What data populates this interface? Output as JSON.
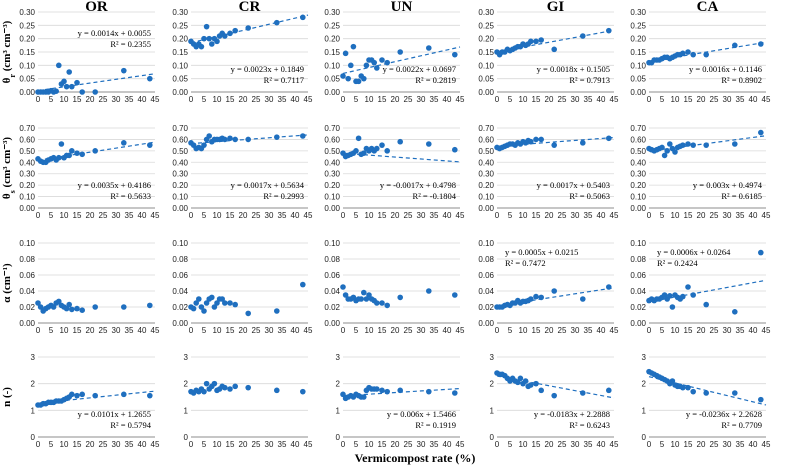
{
  "chart_data": {
    "type": "scatter",
    "x_axis_label": "Vermicompost rate (%)",
    "x_ticks": [
      "0",
      "5",
      "10",
      "15",
      "20",
      "25",
      "30",
      "35",
      "40",
      "45"
    ],
    "xlim": [
      0,
      45
    ],
    "x": [
      0,
      1,
      2,
      3,
      4,
      5,
      6,
      7,
      8,
      9,
      10,
      11,
      12,
      13,
      15,
      17,
      22,
      33,
      43
    ],
    "columns": [
      "OR",
      "CR",
      "UN",
      "GI",
      "CA"
    ],
    "rows": [
      {
        "key": "thetar",
        "label_main": "θ",
        "label_sub": "r",
        "label_unit": " (cm³ cm⁻³)",
        "ylim": [
          0,
          0.3
        ],
        "y_ticks": [
          "0.00",
          "0.05",
          "0.10",
          "0.15",
          "0.20",
          "0.25",
          "0.30"
        ]
      },
      {
        "key": "thetas",
        "label_main": "θ",
        "label_sub": "s",
        "label_unit": " (cm³ cm⁻³)",
        "ylim": [
          0,
          0.7
        ],
        "y_ticks": [
          "0.00",
          "0.10",
          "0.20",
          "0.30",
          "0.40",
          "0.50",
          "0.60",
          "0.70"
        ]
      },
      {
        "key": "alpha",
        "label_main": "α (cm⁻¹)",
        "label_sub": "",
        "label_unit": "",
        "ylim": [
          0,
          0.1
        ],
        "y_ticks": [
          "0.00",
          "0.02",
          "0.04",
          "0.06",
          "0.08",
          "0.10"
        ]
      },
      {
        "key": "n",
        "label_main": "n (-)",
        "label_sub": "",
        "label_unit": "",
        "ylim": [
          0,
          3
        ],
        "y_ticks": [
          "0",
          "1",
          "2",
          "3"
        ]
      }
    ],
    "panels": [
      {
        "row": 0,
        "col": 0,
        "y": [
          0.0,
          0.0,
          0.0,
          0.0,
          0.0,
          0.005,
          0.0,
          0.003,
          0.1,
          0.03,
          0.04,
          0.02,
          0.075,
          0.02,
          0.035,
          0.0,
          0.0,
          0.08,
          0.05
        ],
        "fit": {
          "slope": 0.0014,
          "intercept": 0.0055
        },
        "eq": [
          "y = 0.0014x + 0.0055",
          "R² = 0.2355"
        ],
        "eq_pos": "top-right"
      },
      {
        "row": 0,
        "col": 1,
        "y": [
          0.19,
          0.18,
          0.17,
          0.18,
          0.17,
          0.2,
          0.245,
          0.2,
          0.18,
          0.2,
          0.19,
          0.21,
          0.22,
          0.21,
          0.22,
          0.23,
          0.24,
          0.26,
          0.28
        ],
        "fit": {
          "slope": 0.0023,
          "intercept": 0.1849
        },
        "eq": [
          "y = 0.0023x + 0.1849",
          "R² = 0.7117"
        ],
        "eq_pos": "bottom-right"
      },
      {
        "row": 0,
        "col": 2,
        "y": [
          0.06,
          0.145,
          0.05,
          0.1,
          0.17,
          0.04,
          0.04,
          0.06,
          0.05,
          0.1,
          0.12,
          0.12,
          0.11,
          0.09,
          0.12,
          0.11,
          0.15,
          0.165,
          0.14
        ],
        "fit": {
          "slope": 0.0022,
          "intercept": 0.0697
        },
        "eq": [
          "y = 0.0022x + 0.0697",
          "R² = 0.2819"
        ],
        "eq_pos": "bottom-right"
      },
      {
        "row": 0,
        "col": 3,
        "y": [
          0.15,
          0.14,
          0.15,
          0.15,
          0.16,
          0.155,
          0.16,
          0.165,
          0.17,
          0.17,
          0.18,
          0.175,
          0.18,
          0.19,
          0.19,
          0.195,
          0.16,
          0.21,
          0.23
        ],
        "fit": {
          "slope": 0.0018,
          "intercept": 0.1505
        },
        "eq": [
          "y = 0.0018x + 0.1505",
          "R² = 0.7913"
        ],
        "eq_pos": "bottom-right"
      },
      {
        "row": 0,
        "col": 4,
        "y": [
          0.11,
          0.11,
          0.12,
          0.12,
          0.12,
          0.125,
          0.13,
          0.13,
          0.125,
          0.13,
          0.135,
          0.14,
          0.14,
          0.145,
          0.15,
          0.14,
          0.14,
          0.175,
          0.18
        ],
        "fit": {
          "slope": 0.0016,
          "intercept": 0.1146
        },
        "eq": [
          "y = 0.0016x + 0.1146",
          "R² = 0.8902"
        ],
        "eq_pos": "bottom-right"
      },
      {
        "row": 1,
        "col": 0,
        "y": [
          0.43,
          0.41,
          0.4,
          0.4,
          0.42,
          0.43,
          0.44,
          0.42,
          0.44,
          0.56,
          0.44,
          0.46,
          0.46,
          0.5,
          0.48,
          0.47,
          0.5,
          0.57,
          0.55
        ],
        "fit": {
          "slope": 0.0035,
          "intercept": 0.4186
        },
        "eq": [
          "y = 0.0035x + 0.4186",
          "R² = 0.5633"
        ],
        "eq_pos": "bottom-right"
      },
      {
        "row": 1,
        "col": 1,
        "y": [
          0.57,
          0.55,
          0.52,
          0.53,
          0.52,
          0.55,
          0.6,
          0.63,
          0.58,
          0.6,
          0.6,
          0.6,
          0.61,
          0.6,
          0.61,
          0.6,
          0.6,
          0.62,
          0.63
        ],
        "fit": {
          "slope": 0.0017,
          "intercept": 0.5634
        },
        "eq": [
          "y = 0.0017x + 0.5634",
          "R² = 0.2993"
        ],
        "eq_pos": "bottom-right"
      },
      {
        "row": 1,
        "col": 2,
        "y": [
          0.48,
          0.45,
          0.46,
          0.47,
          0.48,
          0.5,
          0.61,
          0.47,
          0.48,
          0.52,
          0.5,
          0.52,
          0.5,
          0.52,
          0.55,
          0.5,
          0.58,
          0.56,
          0.51
        ],
        "fit": {
          "slope": -0.0017,
          "intercept": 0.4798
        },
        "eq": [
          "y = -0.0017x + 0.4798",
          "R² = -0.1804"
        ],
        "eq_pos": "bottom-right"
      },
      {
        "row": 1,
        "col": 3,
        "y": [
          0.53,
          0.52,
          0.53,
          0.54,
          0.55,
          0.56,
          0.56,
          0.55,
          0.57,
          0.56,
          0.58,
          0.57,
          0.59,
          0.58,
          0.6,
          0.6,
          0.55,
          0.57,
          0.61
        ],
        "fit": {
          "slope": 0.0017,
          "intercept": 0.5403
        },
        "eq": [
          "y = 0.0017x + 0.5403",
          "R² = 0.5063"
        ],
        "eq_pos": "bottom-right"
      },
      {
        "row": 1,
        "col": 4,
        "y": [
          0.52,
          0.51,
          0.5,
          0.51,
          0.52,
          0.53,
          0.46,
          0.5,
          0.56,
          0.52,
          0.49,
          0.53,
          0.54,
          0.55,
          0.56,
          0.55,
          0.55,
          0.56,
          0.66
        ],
        "fit": {
          "slope": 0.003,
          "intercept": 0.4974
        },
        "eq": [
          "y = 0.003x + 0.4974",
          "R² = 0.6185"
        ],
        "eq_pos": "bottom-right"
      },
      {
        "row": 2,
        "col": 0,
        "y": [
          0.025,
          0.02,
          0.015,
          0.018,
          0.02,
          0.022,
          0.02,
          0.025,
          0.027,
          0.022,
          0.02,
          0.018,
          0.023,
          0.017,
          0.018,
          0.016,
          0.02,
          0.02,
          0.022
        ],
        "fit": null,
        "eq": [],
        "eq_pos": ""
      },
      {
        "row": 2,
        "col": 1,
        "y": [
          0.02,
          0.018,
          0.025,
          0.03,
          0.02,
          0.015,
          0.025,
          0.03,
          0.032,
          0.02,
          0.025,
          0.03,
          0.03,
          0.025,
          0.025,
          0.023,
          0.012,
          0.015,
          0.048
        ],
        "fit": null,
        "eq": [],
        "eq_pos": ""
      },
      {
        "row": 2,
        "col": 2,
        "y": [
          0.045,
          0.035,
          0.03,
          0.03,
          0.032,
          0.028,
          0.03,
          0.03,
          0.038,
          0.03,
          0.035,
          0.03,
          0.028,
          0.025,
          0.025,
          0.022,
          0.032,
          0.04,
          0.035
        ],
        "fit": null,
        "eq": [],
        "eq_pos": ""
      },
      {
        "row": 2,
        "col": 3,
        "y": [
          0.02,
          0.02,
          0.02,
          0.022,
          0.023,
          0.022,
          0.025,
          0.025,
          0.028,
          0.025,
          0.027,
          0.027,
          0.028,
          0.03,
          0.033,
          0.032,
          0.04,
          0.03,
          0.045
        ],
        "fit": {
          "slope": 0.0005,
          "intercept": 0.0215
        },
        "eq": [
          "y = 0.0005x + 0.0215",
          "R² = 0.7472"
        ],
        "eq_pos": "top-left"
      },
      {
        "row": 2,
        "col": 4,
        "y": [
          0.028,
          0.03,
          0.028,
          0.03,
          0.03,
          0.032,
          0.035,
          0.03,
          0.034,
          0.02,
          0.035,
          0.032,
          0.03,
          0.033,
          0.045,
          0.035,
          0.023,
          0.014,
          0.088
        ],
        "fit": {
          "slope": 0.0006,
          "intercept": 0.0264
        },
        "eq": [
          "y = 0.0006x + 0.0264",
          "R² = 0.2424"
        ],
        "eq_pos": "top-left"
      },
      {
        "row": 3,
        "col": 0,
        "y": [
          1.2,
          1.2,
          1.25,
          1.25,
          1.3,
          1.3,
          1.3,
          1.35,
          1.35,
          1.35,
          1.4,
          1.45,
          1.5,
          1.6,
          1.55,
          1.6,
          1.55,
          1.6,
          1.55
        ],
        "fit": {
          "slope": 0.0101,
          "intercept": 1.2655
        },
        "eq": [
          "y = 0.0101x + 1.2655",
          "R² = 0.5794"
        ],
        "eq_pos": "bottom-right"
      },
      {
        "row": 3,
        "col": 1,
        "y": [
          1.7,
          1.65,
          1.75,
          1.7,
          1.8,
          1.7,
          2.0,
          1.8,
          1.9,
          2.0,
          1.75,
          1.8,
          1.9,
          1.85,
          1.8,
          1.9,
          1.85,
          1.75,
          1.7
        ],
        "fit": null,
        "eq": [],
        "eq_pos": ""
      },
      {
        "row": 3,
        "col": 2,
        "y": [
          1.6,
          1.45,
          1.5,
          1.55,
          1.5,
          1.6,
          1.55,
          1.5,
          1.5,
          1.75,
          1.85,
          1.8,
          1.8,
          1.8,
          1.75,
          1.7,
          1.75,
          1.7,
          1.65
        ],
        "fit": {
          "slope": 0.006,
          "intercept": 1.5466
        },
        "eq": [
          "y = 0.006x + 1.5466",
          "R² = 0.1919"
        ],
        "eq_pos": "bottom-right"
      },
      {
        "row": 3,
        "col": 3,
        "y": [
          2.4,
          2.35,
          2.35,
          2.3,
          2.2,
          2.1,
          2.2,
          2.1,
          2.05,
          2.2,
          2.0,
          2.1,
          1.9,
          1.95,
          2.0,
          1.75,
          1.55,
          1.65,
          1.75
        ],
        "fit": {
          "slope": -0.0183,
          "intercept": 2.2888
        },
        "eq": [
          "y = -0.0183x + 2.2888",
          "R² = 0.6243"
        ],
        "eq_pos": "bottom-right"
      },
      {
        "row": 3,
        "col": 4,
        "y": [
          2.45,
          2.4,
          2.35,
          2.3,
          2.25,
          2.2,
          2.15,
          2.1,
          2.0,
          2.1,
          1.95,
          1.9,
          1.9,
          1.85,
          1.85,
          1.7,
          1.65,
          1.65,
          1.4
        ],
        "fit": {
          "slope": -0.0236,
          "intercept": 2.2628
        },
        "eq": [
          "y = -0.0236x + 2.2628",
          "R² = 0.7709"
        ],
        "eq_pos": "bottom-right"
      }
    ]
  }
}
